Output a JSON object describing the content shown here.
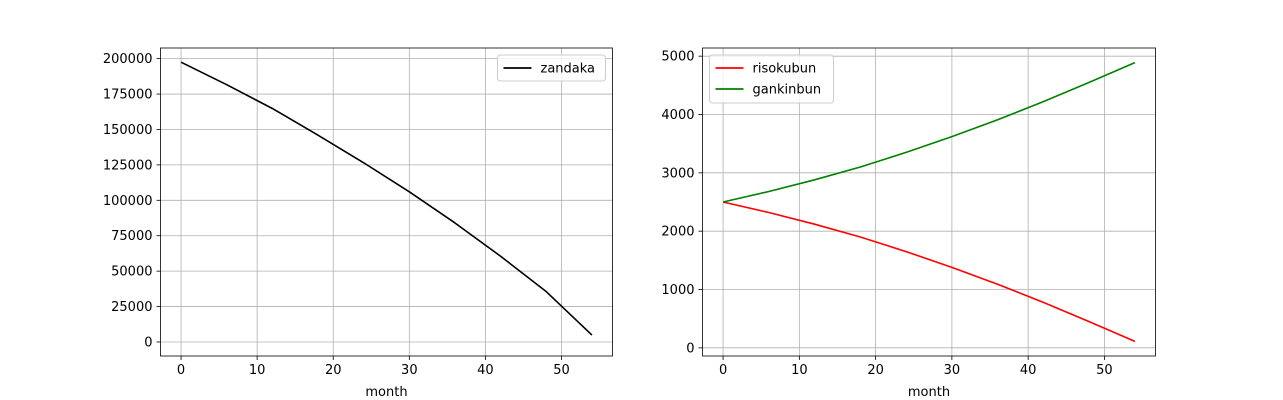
{
  "chart_data": [
    {
      "type": "line",
      "title": "",
      "xlabel": "month",
      "ylabel": "",
      "xlim": [
        -2.7,
        56.7
      ],
      "ylim": [
        -9900,
        207500
      ],
      "xticks": [
        0,
        10,
        20,
        30,
        40,
        50
      ],
      "yticks": [
        0,
        25000,
        50000,
        75000,
        100000,
        125000,
        150000,
        175000,
        200000
      ],
      "grid": true,
      "legend": "top-right",
      "x": [
        0,
        6,
        12,
        18,
        24,
        30,
        36,
        42,
        48,
        54
      ],
      "series": [
        {
          "name": "zandaka",
          "color": "#000000",
          "values": [
            197500,
            181600,
            164800,
            146000,
            126500,
            106000,
            84000,
            60500,
            35500,
            4900
          ]
        }
      ]
    },
    {
      "type": "line",
      "title": "",
      "xlabel": "month",
      "ylabel": "",
      "xlim": [
        -2.7,
        56.7
      ],
      "ylim": [
        -140,
        5140
      ],
      "xticks": [
        0,
        10,
        20,
        30,
        40,
        50
      ],
      "yticks": [
        0,
        1000,
        2000,
        3000,
        4000,
        5000
      ],
      "grid": true,
      "legend": "top-left",
      "x": [
        0,
        6,
        12,
        18,
        24,
        30,
        36,
        42,
        48,
        54
      ],
      "series": [
        {
          "name": "risokubun",
          "color": "#ff0000",
          "values": [
            2500,
            2320,
            2120,
            1900,
            1650,
            1380,
            1090,
            780,
            450,
            110
          ]
        },
        {
          "name": "gankinbun",
          "color": "#008000",
          "values": [
            2500,
            2680,
            2880,
            3100,
            3350,
            3620,
            3910,
            4220,
            4550,
            4890
          ]
        }
      ]
    }
  ]
}
